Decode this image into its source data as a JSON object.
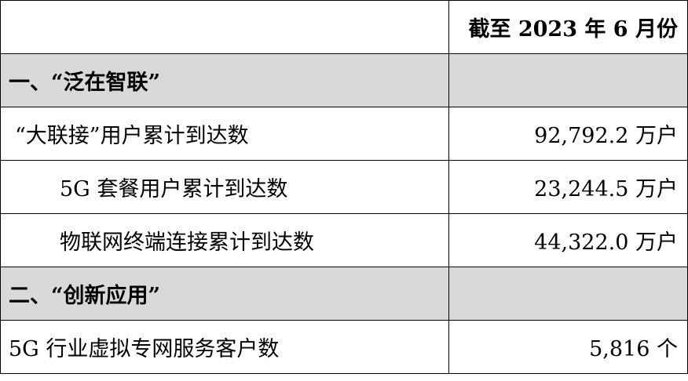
{
  "header": {
    "label": "",
    "period": "截至 2023 年 6 月份"
  },
  "rows": [
    {
      "label": "一、“泛在智联”",
      "value": "",
      "type": "section"
    },
    {
      "label": "“大联接”用户累计到达数",
      "value": "92,792.2 万户",
      "type": "item"
    },
    {
      "label": "5G 套餐用户累计到达数",
      "value": "23,244.5 万户",
      "type": "subitem"
    },
    {
      "label": "物联网终端连接累计到达数",
      "value": "44,322.0 万户",
      "type": "subitem"
    },
    {
      "label": "二、“创新应用”",
      "value": "",
      "type": "section"
    },
    {
      "label": "5G 行业虚拟专网服务客户数",
      "value": "5,816 个",
      "type": "item0"
    }
  ],
  "colors": {
    "section_background": "#d9d9d9"
  }
}
